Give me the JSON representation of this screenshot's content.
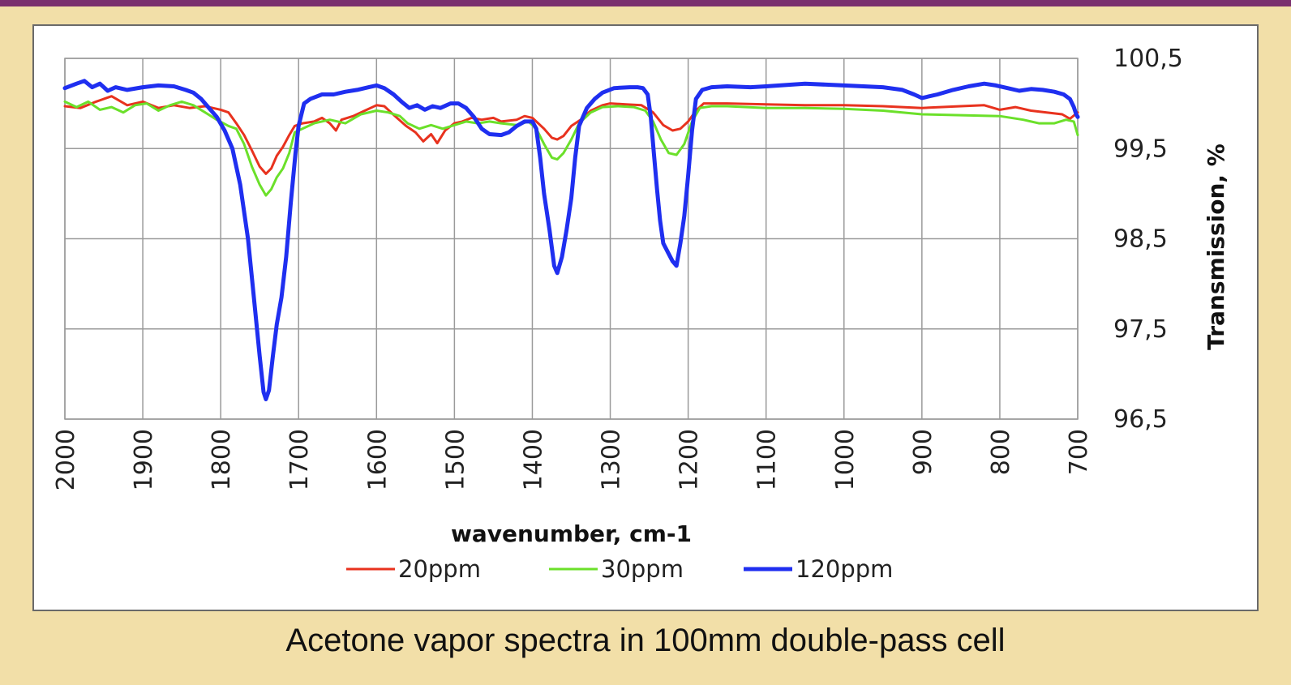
{
  "caption": "Acetone vapor spectra in 100mm double-pass cell",
  "colors": {
    "frame_bg": "#f2dfa8",
    "top_bar": "#7a2f6e",
    "grid": "#9a9a9a"
  },
  "chart_data": {
    "type": "line",
    "xlabel": "wavenumber, cm-1",
    "ylabel": "Transmission, %",
    "xlim": [
      2000,
      700
    ],
    "ylim": [
      96.5,
      100.5
    ],
    "x_ticks": [
      "2000",
      "1900",
      "1800",
      "1700",
      "1600",
      "1500",
      "1400",
      "1300",
      "1200",
      "1100",
      "1000",
      "900",
      "800",
      "700"
    ],
    "y_ticks": [
      "100,5",
      "99,5",
      "98,5",
      "97,5",
      "96,5"
    ],
    "legend_position": "bottom",
    "grid": true,
    "series": [
      {
        "name": "20ppm",
        "color": "#e8321e",
        "points": [
          [
            2000,
            99.97
          ],
          [
            1980,
            99.95
          ],
          [
            1960,
            100.02
          ],
          [
            1940,
            100.08
          ],
          [
            1920,
            99.98
          ],
          [
            1900,
            100.02
          ],
          [
            1880,
            99.95
          ],
          [
            1860,
            99.98
          ],
          [
            1840,
            99.95
          ],
          [
            1820,
            99.97
          ],
          [
            1800,
            99.93
          ],
          [
            1790,
            99.9
          ],
          [
            1780,
            99.78
          ],
          [
            1770,
            99.65
          ],
          [
            1760,
            99.48
          ],
          [
            1750,
            99.3
          ],
          [
            1742,
            99.22
          ],
          [
            1735,
            99.28
          ],
          [
            1728,
            99.42
          ],
          [
            1720,
            99.52
          ],
          [
            1712,
            99.65
          ],
          [
            1705,
            99.75
          ],
          [
            1695,
            99.78
          ],
          [
            1680,
            99.8
          ],
          [
            1670,
            99.84
          ],
          [
            1660,
            99.78
          ],
          [
            1652,
            99.7
          ],
          [
            1645,
            99.82
          ],
          [
            1630,
            99.86
          ],
          [
            1615,
            99.92
          ],
          [
            1600,
            99.98
          ],
          [
            1590,
            99.97
          ],
          [
            1575,
            99.85
          ],
          [
            1562,
            99.75
          ],
          [
            1550,
            99.68
          ],
          [
            1540,
            99.58
          ],
          [
            1530,
            99.66
          ],
          [
            1522,
            99.56
          ],
          [
            1512,
            99.7
          ],
          [
            1500,
            99.78
          ],
          [
            1490,
            99.8
          ],
          [
            1478,
            99.84
          ],
          [
            1465,
            99.82
          ],
          [
            1450,
            99.84
          ],
          [
            1440,
            99.8
          ],
          [
            1420,
            99.82
          ],
          [
            1410,
            99.86
          ],
          [
            1400,
            99.84
          ],
          [
            1385,
            99.72
          ],
          [
            1375,
            99.62
          ],
          [
            1368,
            99.6
          ],
          [
            1360,
            99.64
          ],
          [
            1350,
            99.75
          ],
          [
            1338,
            99.82
          ],
          [
            1325,
            99.92
          ],
          [
            1310,
            99.98
          ],
          [
            1300,
            100.0
          ],
          [
            1280,
            99.99
          ],
          [
            1260,
            99.98
          ],
          [
            1245,
            99.9
          ],
          [
            1232,
            99.76
          ],
          [
            1220,
            99.7
          ],
          [
            1210,
            99.72
          ],
          [
            1200,
            99.8
          ],
          [
            1190,
            99.92
          ],
          [
            1180,
            100.0
          ],
          [
            1150,
            100.0
          ],
          [
            1100,
            99.99
          ],
          [
            1050,
            99.98
          ],
          [
            1000,
            99.98
          ],
          [
            950,
            99.97
          ],
          [
            900,
            99.95
          ],
          [
            850,
            99.97
          ],
          [
            820,
            99.98
          ],
          [
            800,
            99.93
          ],
          [
            780,
            99.96
          ],
          [
            760,
            99.92
          ],
          [
            740,
            99.9
          ],
          [
            720,
            99.88
          ],
          [
            710,
            99.83
          ],
          [
            700,
            99.9
          ]
        ]
      },
      {
        "name": "30ppm",
        "color": "#6be02a",
        "points": [
          [
            2000,
            100.02
          ],
          [
            1985,
            99.96
          ],
          [
            1970,
            100.02
          ],
          [
            1955,
            99.93
          ],
          [
            1940,
            99.96
          ],
          [
            1925,
            99.9
          ],
          [
            1910,
            99.98
          ],
          [
            1895,
            100.0
          ],
          [
            1880,
            99.92
          ],
          [
            1865,
            99.98
          ],
          [
            1850,
            100.02
          ],
          [
            1835,
            99.98
          ],
          [
            1820,
            99.9
          ],
          [
            1805,
            99.82
          ],
          [
            1790,
            99.75
          ],
          [
            1780,
            99.72
          ],
          [
            1770,
            99.55
          ],
          [
            1760,
            99.3
          ],
          [
            1750,
            99.1
          ],
          [
            1742,
            98.98
          ],
          [
            1735,
            99.05
          ],
          [
            1728,
            99.18
          ],
          [
            1720,
            99.28
          ],
          [
            1712,
            99.45
          ],
          [
            1705,
            99.68
          ],
          [
            1695,
            99.72
          ],
          [
            1680,
            99.78
          ],
          [
            1660,
            99.82
          ],
          [
            1640,
            99.78
          ],
          [
            1620,
            99.88
          ],
          [
            1600,
            99.92
          ],
          [
            1585,
            99.9
          ],
          [
            1570,
            99.86
          ],
          [
            1560,
            99.78
          ],
          [
            1545,
            99.72
          ],
          [
            1530,
            99.76
          ],
          [
            1515,
            99.72
          ],
          [
            1500,
            99.76
          ],
          [
            1485,
            99.8
          ],
          [
            1470,
            99.78
          ],
          [
            1455,
            99.8
          ],
          [
            1440,
            99.78
          ],
          [
            1420,
            99.76
          ],
          [
            1405,
            99.8
          ],
          [
            1395,
            99.72
          ],
          [
            1385,
            99.55
          ],
          [
            1375,
            99.4
          ],
          [
            1368,
            99.38
          ],
          [
            1360,
            99.45
          ],
          [
            1350,
            99.6
          ],
          [
            1340,
            99.78
          ],
          [
            1325,
            99.9
          ],
          [
            1310,
            99.96
          ],
          [
            1290,
            99.97
          ],
          [
            1270,
            99.96
          ],
          [
            1255,
            99.92
          ],
          [
            1245,
            99.8
          ],
          [
            1235,
            99.6
          ],
          [
            1225,
            99.45
          ],
          [
            1215,
            99.43
          ],
          [
            1205,
            99.55
          ],
          [
            1195,
            99.8
          ],
          [
            1185,
            99.95
          ],
          [
            1170,
            99.97
          ],
          [
            1150,
            99.97
          ],
          [
            1100,
            99.95
          ],
          [
            1050,
            99.95
          ],
          [
            1000,
            99.94
          ],
          [
            950,
            99.92
          ],
          [
            900,
            99.88
          ],
          [
            850,
            99.87
          ],
          [
            800,
            99.86
          ],
          [
            770,
            99.82
          ],
          [
            750,
            99.78
          ],
          [
            730,
            99.78
          ],
          [
            715,
            99.82
          ],
          [
            705,
            99.8
          ],
          [
            700,
            99.65
          ]
        ]
      },
      {
        "name": "120ppm",
        "color": "#1f2ff0",
        "points": [
          [
            2000,
            100.17
          ],
          [
            1985,
            100.22
          ],
          [
            1975,
            100.25
          ],
          [
            1965,
            100.18
          ],
          [
            1955,
            100.22
          ],
          [
            1945,
            100.14
          ],
          [
            1935,
            100.18
          ],
          [
            1920,
            100.15
          ],
          [
            1900,
            100.18
          ],
          [
            1880,
            100.2
          ],
          [
            1860,
            100.19
          ],
          [
            1845,
            100.15
          ],
          [
            1835,
            100.12
          ],
          [
            1825,
            100.05
          ],
          [
            1815,
            99.95
          ],
          [
            1805,
            99.85
          ],
          [
            1795,
            99.7
          ],
          [
            1785,
            99.5
          ],
          [
            1775,
            99.1
          ],
          [
            1765,
            98.5
          ],
          [
            1758,
            97.9
          ],
          [
            1750,
            97.2
          ],
          [
            1745,
            96.8
          ],
          [
            1742,
            96.72
          ],
          [
            1738,
            96.82
          ],
          [
            1733,
            97.2
          ],
          [
            1728,
            97.55
          ],
          [
            1722,
            97.85
          ],
          [
            1716,
            98.3
          ],
          [
            1710,
            98.9
          ],
          [
            1704,
            99.45
          ],
          [
            1700,
            99.75
          ],
          [
            1693,
            100.0
          ],
          [
            1685,
            100.05
          ],
          [
            1670,
            100.1
          ],
          [
            1655,
            100.1
          ],
          [
            1640,
            100.13
          ],
          [
            1625,
            100.15
          ],
          [
            1610,
            100.18
          ],
          [
            1600,
            100.2
          ],
          [
            1590,
            100.17
          ],
          [
            1578,
            100.1
          ],
          [
            1568,
            100.02
          ],
          [
            1558,
            99.95
          ],
          [
            1548,
            99.98
          ],
          [
            1538,
            99.93
          ],
          [
            1528,
            99.97
          ],
          [
            1518,
            99.95
          ],
          [
            1505,
            100.0
          ],
          [
            1495,
            100.0
          ],
          [
            1485,
            99.95
          ],
          [
            1475,
            99.85
          ],
          [
            1465,
            99.72
          ],
          [
            1455,
            99.66
          ],
          [
            1440,
            99.65
          ],
          [
            1430,
            99.68
          ],
          [
            1420,
            99.75
          ],
          [
            1410,
            99.8
          ],
          [
            1400,
            99.8
          ],
          [
            1395,
            99.72
          ],
          [
            1390,
            99.4
          ],
          [
            1385,
            99.0
          ],
          [
            1378,
            98.6
          ],
          [
            1372,
            98.2
          ],
          [
            1368,
            98.12
          ],
          [
            1362,
            98.3
          ],
          [
            1356,
            98.6
          ],
          [
            1350,
            98.95
          ],
          [
            1345,
            99.4
          ],
          [
            1340,
            99.75
          ],
          [
            1330,
            99.95
          ],
          [
            1320,
            100.05
          ],
          [
            1310,
            100.12
          ],
          [
            1295,
            100.17
          ],
          [
            1275,
            100.18
          ],
          [
            1265,
            100.18
          ],
          [
            1258,
            100.17
          ],
          [
            1252,
            100.1
          ],
          [
            1248,
            99.85
          ],
          [
            1244,
            99.45
          ],
          [
            1240,
            99.05
          ],
          [
            1236,
            98.7
          ],
          [
            1232,
            98.45
          ],
          [
            1226,
            98.35
          ],
          [
            1220,
            98.25
          ],
          [
            1215,
            98.2
          ],
          [
            1210,
            98.45
          ],
          [
            1205,
            98.75
          ],
          [
            1200,
            99.2
          ],
          [
            1195,
            99.7
          ],
          [
            1190,
            100.05
          ],
          [
            1182,
            100.15
          ],
          [
            1170,
            100.18
          ],
          [
            1150,
            100.19
          ],
          [
            1120,
            100.18
          ],
          [
            1100,
            100.19
          ],
          [
            1050,
            100.22
          ],
          [
            1000,
            100.2
          ],
          [
            950,
            100.18
          ],
          [
            925,
            100.15
          ],
          [
            910,
            100.1
          ],
          [
            900,
            100.06
          ],
          [
            880,
            100.1
          ],
          [
            860,
            100.15
          ],
          [
            840,
            100.19
          ],
          [
            820,
            100.22
          ],
          [
            805,
            100.2
          ],
          [
            790,
            100.17
          ],
          [
            775,
            100.14
          ],
          [
            760,
            100.16
          ],
          [
            745,
            100.15
          ],
          [
            730,
            100.13
          ],
          [
            718,
            100.1
          ],
          [
            710,
            100.05
          ],
          [
            705,
            99.96
          ],
          [
            702,
            99.88
          ],
          [
            700,
            99.85
          ]
        ]
      }
    ]
  }
}
